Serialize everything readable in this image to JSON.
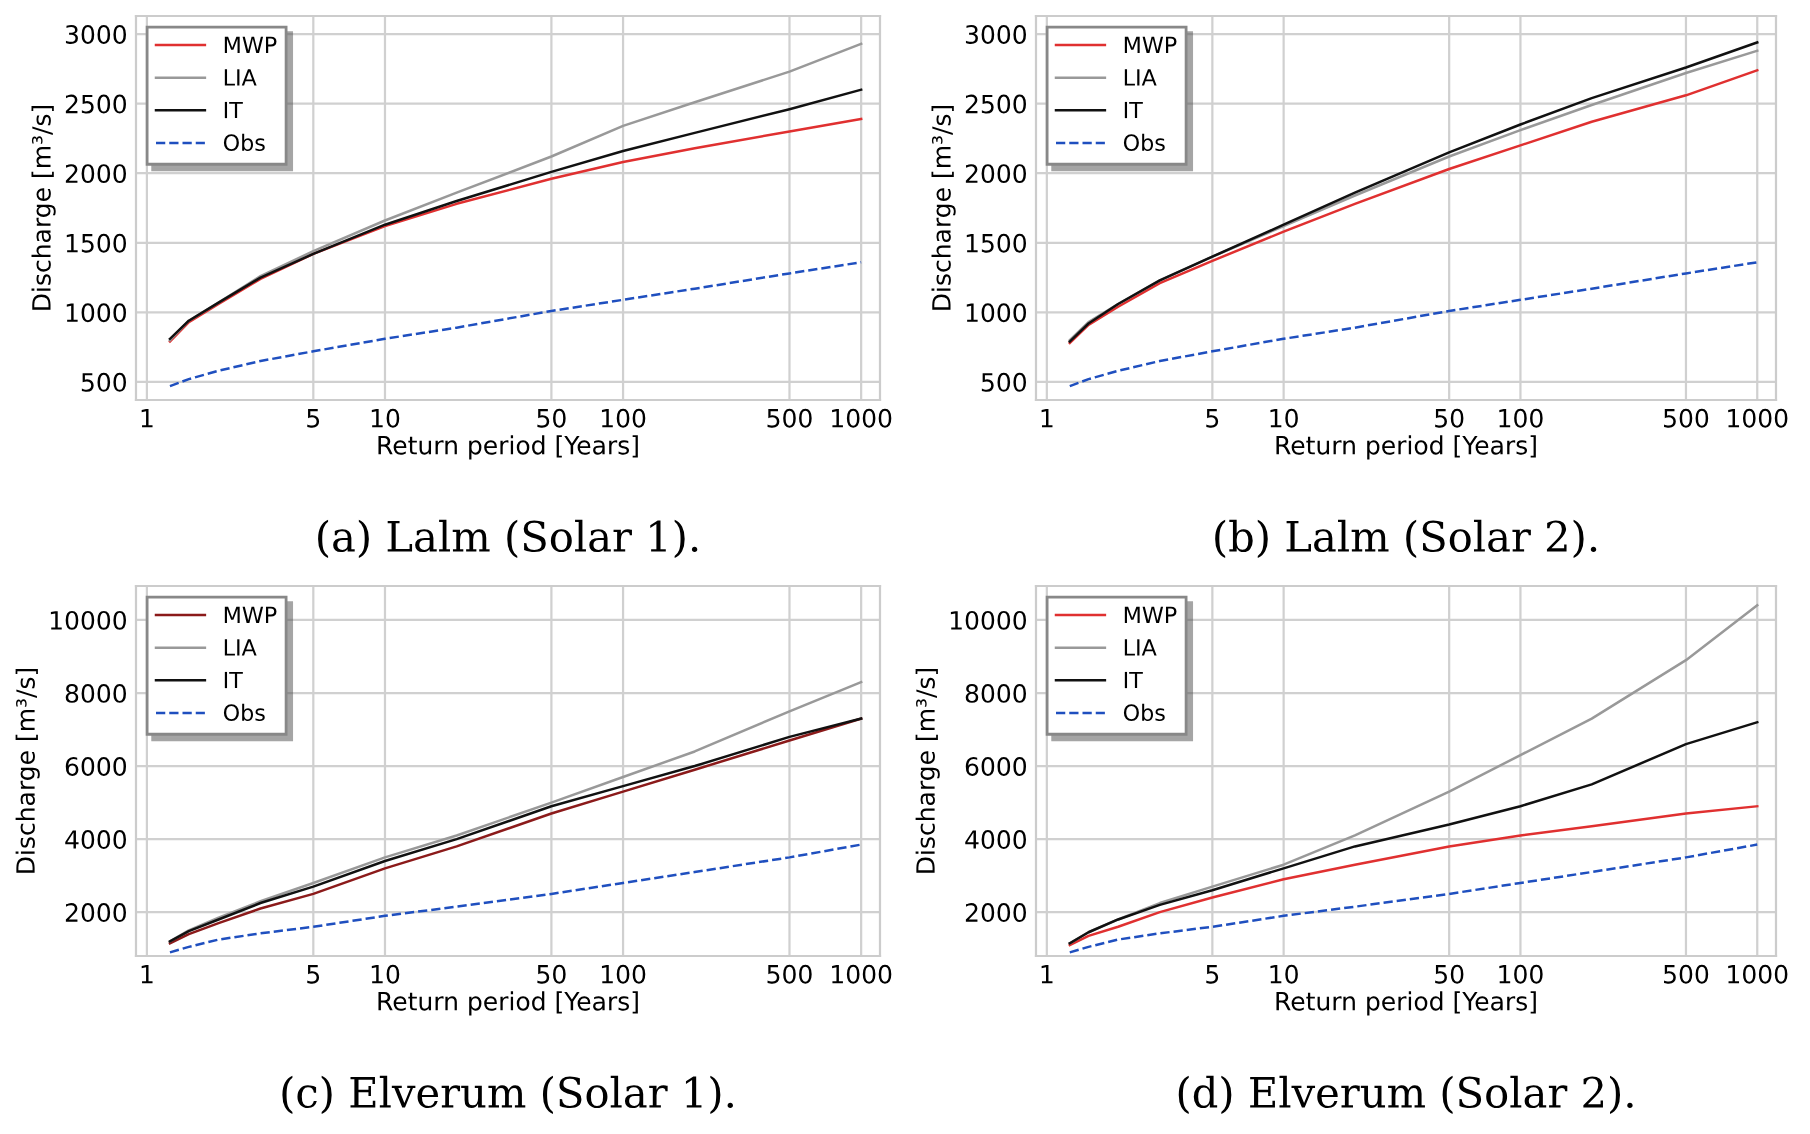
{
  "chart_data": [
    {
      "type": "line",
      "title": "(a) Lalm (Solar 1).",
      "xlabel": "Return period [Years]",
      "ylabel": "Discharge [m³/s]",
      "log": "x",
      "grid": true,
      "legend": "top left",
      "xlim": [
        0.9,
        1200
      ],
      "xticks": [
        1,
        5,
        10,
        50,
        100,
        500,
        1000
      ],
      "ylim": [
        370,
        3130
      ],
      "yticks": [
        500,
        1000,
        1500,
        2000,
        2500,
        3000
      ],
      "x": [
        1.25,
        1.5,
        2,
        3,
        5,
        10,
        20,
        50,
        100,
        200,
        500,
        1000
      ],
      "series": [
        {
          "name": "MWP",
          "color": "#e03030",
          "values": [
            790,
            930,
            1060,
            1240,
            1420,
            1620,
            1780,
            1960,
            2080,
            2180,
            2300,
            2390
          ]
        },
        {
          "name": "LIA",
          "color": "#999999",
          "values": [
            800,
            940,
            1070,
            1260,
            1440,
            1660,
            1860,
            2120,
            2340,
            2510,
            2730,
            2930
          ]
        },
        {
          "name": "IT",
          "color": "#111111",
          "values": [
            810,
            940,
            1070,
            1250,
            1420,
            1630,
            1800,
            2010,
            2160,
            2290,
            2460,
            2600
          ]
        },
        {
          "name": "Obs",
          "color": "#1f4fbf",
          "line_style": "dashed",
          "values": [
            470,
            520,
            580,
            650,
            720,
            810,
            890,
            1010,
            1090,
            1170,
            1280,
            1360
          ]
        }
      ]
    },
    {
      "type": "line",
      "title": "(b) Lalm (Solar 2).",
      "xlabel": "Return period [Years]",
      "ylabel": "Discharge [m³/s]",
      "log": "x",
      "grid": true,
      "legend": "top left",
      "xlim": [
        0.9,
        1200
      ],
      "xticks": [
        1,
        5,
        10,
        50,
        100,
        500,
        1000
      ],
      "ylim": [
        370,
        3130
      ],
      "yticks": [
        500,
        1000,
        1500,
        2000,
        2500,
        3000
      ],
      "x": [
        1.25,
        1.5,
        2,
        3,
        5,
        10,
        20,
        50,
        100,
        200,
        500,
        1000
      ],
      "series": [
        {
          "name": "MWP",
          "color": "#e03030",
          "values": [
            780,
            910,
            1040,
            1210,
            1370,
            1580,
            1780,
            2030,
            2200,
            2370,
            2560,
            2740
          ]
        },
        {
          "name": "LIA",
          "color": "#999999",
          "values": [
            800,
            930,
            1060,
            1230,
            1400,
            1620,
            1840,
            2120,
            2310,
            2490,
            2720,
            2880
          ]
        },
        {
          "name": "IT",
          "color": "#111111",
          "values": [
            790,
            920,
            1060,
            1230,
            1400,
            1630,
            1860,
            2150,
            2350,
            2540,
            2760,
            2940
          ]
        },
        {
          "name": "Obs",
          "color": "#1f4fbf",
          "line_style": "dashed",
          "values": [
            470,
            520,
            580,
            650,
            720,
            810,
            890,
            1010,
            1090,
            1170,
            1280,
            1360
          ]
        }
      ]
    },
    {
      "type": "line",
      "title": "(c) Elverum (Solar 1).",
      "xlabel": "Return period [Years]",
      "ylabel": "Discharge [m³/s]",
      "log": "x",
      "grid": true,
      "legend": "top left",
      "xlim": [
        0.9,
        1200
      ],
      "xticks": [
        1,
        5,
        10,
        50,
        100,
        500,
        1000
      ],
      "ylim": [
        800,
        10930
      ],
      "yticks": [
        2000,
        4000,
        6000,
        8000,
        10000
      ],
      "x": [
        1.25,
        1.5,
        2,
        3,
        5,
        10,
        20,
        50,
        100,
        200,
        500,
        1000
      ],
      "series": [
        {
          "name": "MWP",
          "color": "#8b1a1a",
          "values": [
            1150,
            1400,
            1700,
            2100,
            2500,
            3200,
            3800,
            4700,
            5300,
            5900,
            6700,
            7300
          ]
        },
        {
          "name": "LIA",
          "color": "#999999",
          "values": [
            1200,
            1500,
            1850,
            2300,
            2800,
            3500,
            4100,
            5000,
            5700,
            6400,
            7500,
            8300
          ]
        },
        {
          "name": "IT",
          "color": "#111111",
          "values": [
            1200,
            1480,
            1800,
            2250,
            2700,
            3400,
            4000,
            4900,
            5450,
            6000,
            6800,
            7300
          ]
        },
        {
          "name": "Obs",
          "color": "#1f4fbf",
          "line_style": "dashed",
          "values": [
            900,
            1050,
            1250,
            1420,
            1600,
            1900,
            2150,
            2500,
            2800,
            3100,
            3500,
            3850
          ]
        }
      ]
    },
    {
      "type": "line",
      "title": "(d) Elverum (Solar 2).",
      "xlabel": "Return period [Years]",
      "ylabel": "Discharge [m³/s]",
      "log": "x",
      "grid": true,
      "legend": "top left",
      "xlim": [
        0.9,
        1200
      ],
      "xticks": [
        1,
        5,
        10,
        50,
        100,
        500,
        1000
      ],
      "ylim": [
        800,
        10930
      ],
      "yticks": [
        2000,
        4000,
        6000,
        8000,
        10000
      ],
      "x": [
        1.25,
        1.5,
        2,
        3,
        5,
        10,
        20,
        50,
        100,
        200,
        500,
        1000
      ],
      "series": [
        {
          "name": "MWP",
          "color": "#e03030",
          "values": [
            1100,
            1350,
            1600,
            2000,
            2400,
            2900,
            3300,
            3800,
            4100,
            4350,
            4700,
            4900
          ]
        },
        {
          "name": "LIA",
          "color": "#999999",
          "values": [
            1150,
            1450,
            1800,
            2250,
            2700,
            3300,
            4100,
            5300,
            6300,
            7300,
            8900,
            10400
          ]
        },
        {
          "name": "IT",
          "color": "#111111",
          "values": [
            1150,
            1450,
            1800,
            2200,
            2600,
            3200,
            3800,
            4400,
            4900,
            5500,
            6600,
            7200
          ]
        },
        {
          "name": "Obs",
          "color": "#1f4fbf",
          "line_style": "dashed",
          "values": [
            900,
            1050,
            1250,
            1420,
            1600,
            1900,
            2150,
            2500,
            2800,
            3100,
            3500,
            3850
          ]
        }
      ]
    }
  ]
}
